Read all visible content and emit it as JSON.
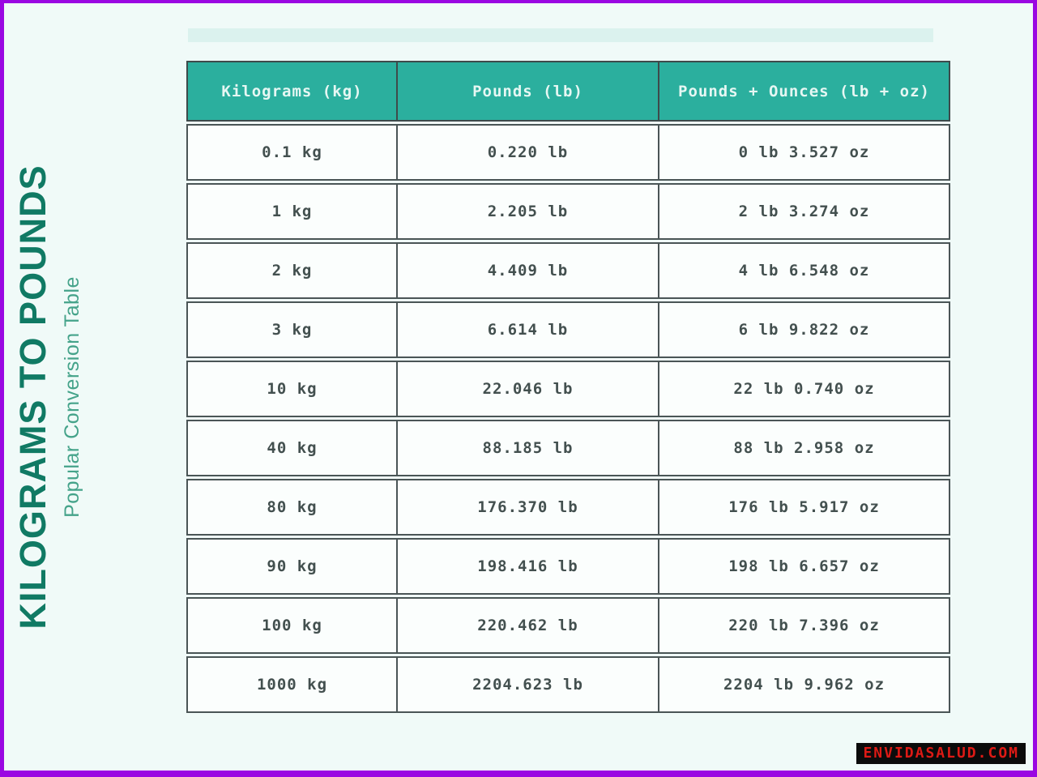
{
  "page": {
    "frame_color": "#9A07E2",
    "background_color": "#F0FAF8"
  },
  "title": {
    "text": "KILOGRAMS TO POUNDS",
    "subtitle": "Popular Conversion Table",
    "title_color": "#107A64",
    "subtitle_color": "#45A38A"
  },
  "chart_data": {
    "type": "table",
    "title": "KILOGRAMS TO POUNDS",
    "subtitle": "Popular Conversion Table",
    "columns": [
      "Kilograms (kg)",
      "Pounds (lb)",
      "Pounds + Ounces (lb + oz)"
    ],
    "rows": [
      [
        "0.1 kg",
        "0.220 lb",
        "0 lb 3.527 oz"
      ],
      [
        "1 kg",
        "2.205 lb",
        "2 lb 3.274 oz"
      ],
      [
        "2 kg",
        "4.409 lb",
        "4 lb 6.548 oz"
      ],
      [
        "3 kg",
        "6.614 lb",
        "6 lb 9.822 oz"
      ],
      [
        "10 kg",
        "22.046 lb",
        "22 lb 0.740 oz"
      ],
      [
        "40 kg",
        "88.185 lb",
        "88 lb 2.958 oz"
      ],
      [
        "80 kg",
        "176.370 lb",
        "176 lb 5.917 oz"
      ],
      [
        "90 kg",
        "198.416 lb",
        "198 lb 6.657 oz"
      ],
      [
        "100 kg",
        "220.462 lb",
        "220 lb 7.396 oz"
      ],
      [
        "1000 kg",
        "2204.623 lb",
        "2204 lb 9.962 oz"
      ]
    ],
    "header_bg_color": "#2BAF9E",
    "header_text_color": "#E6F7F3",
    "row_bg_color": "#FBFEFD",
    "grid_color": "#4A5556",
    "grid_on": true
  },
  "watermark": {
    "text": "ENVIDASALUD.COM",
    "bg_color": "#0B0B0B",
    "text_color": "#DD1A15"
  }
}
